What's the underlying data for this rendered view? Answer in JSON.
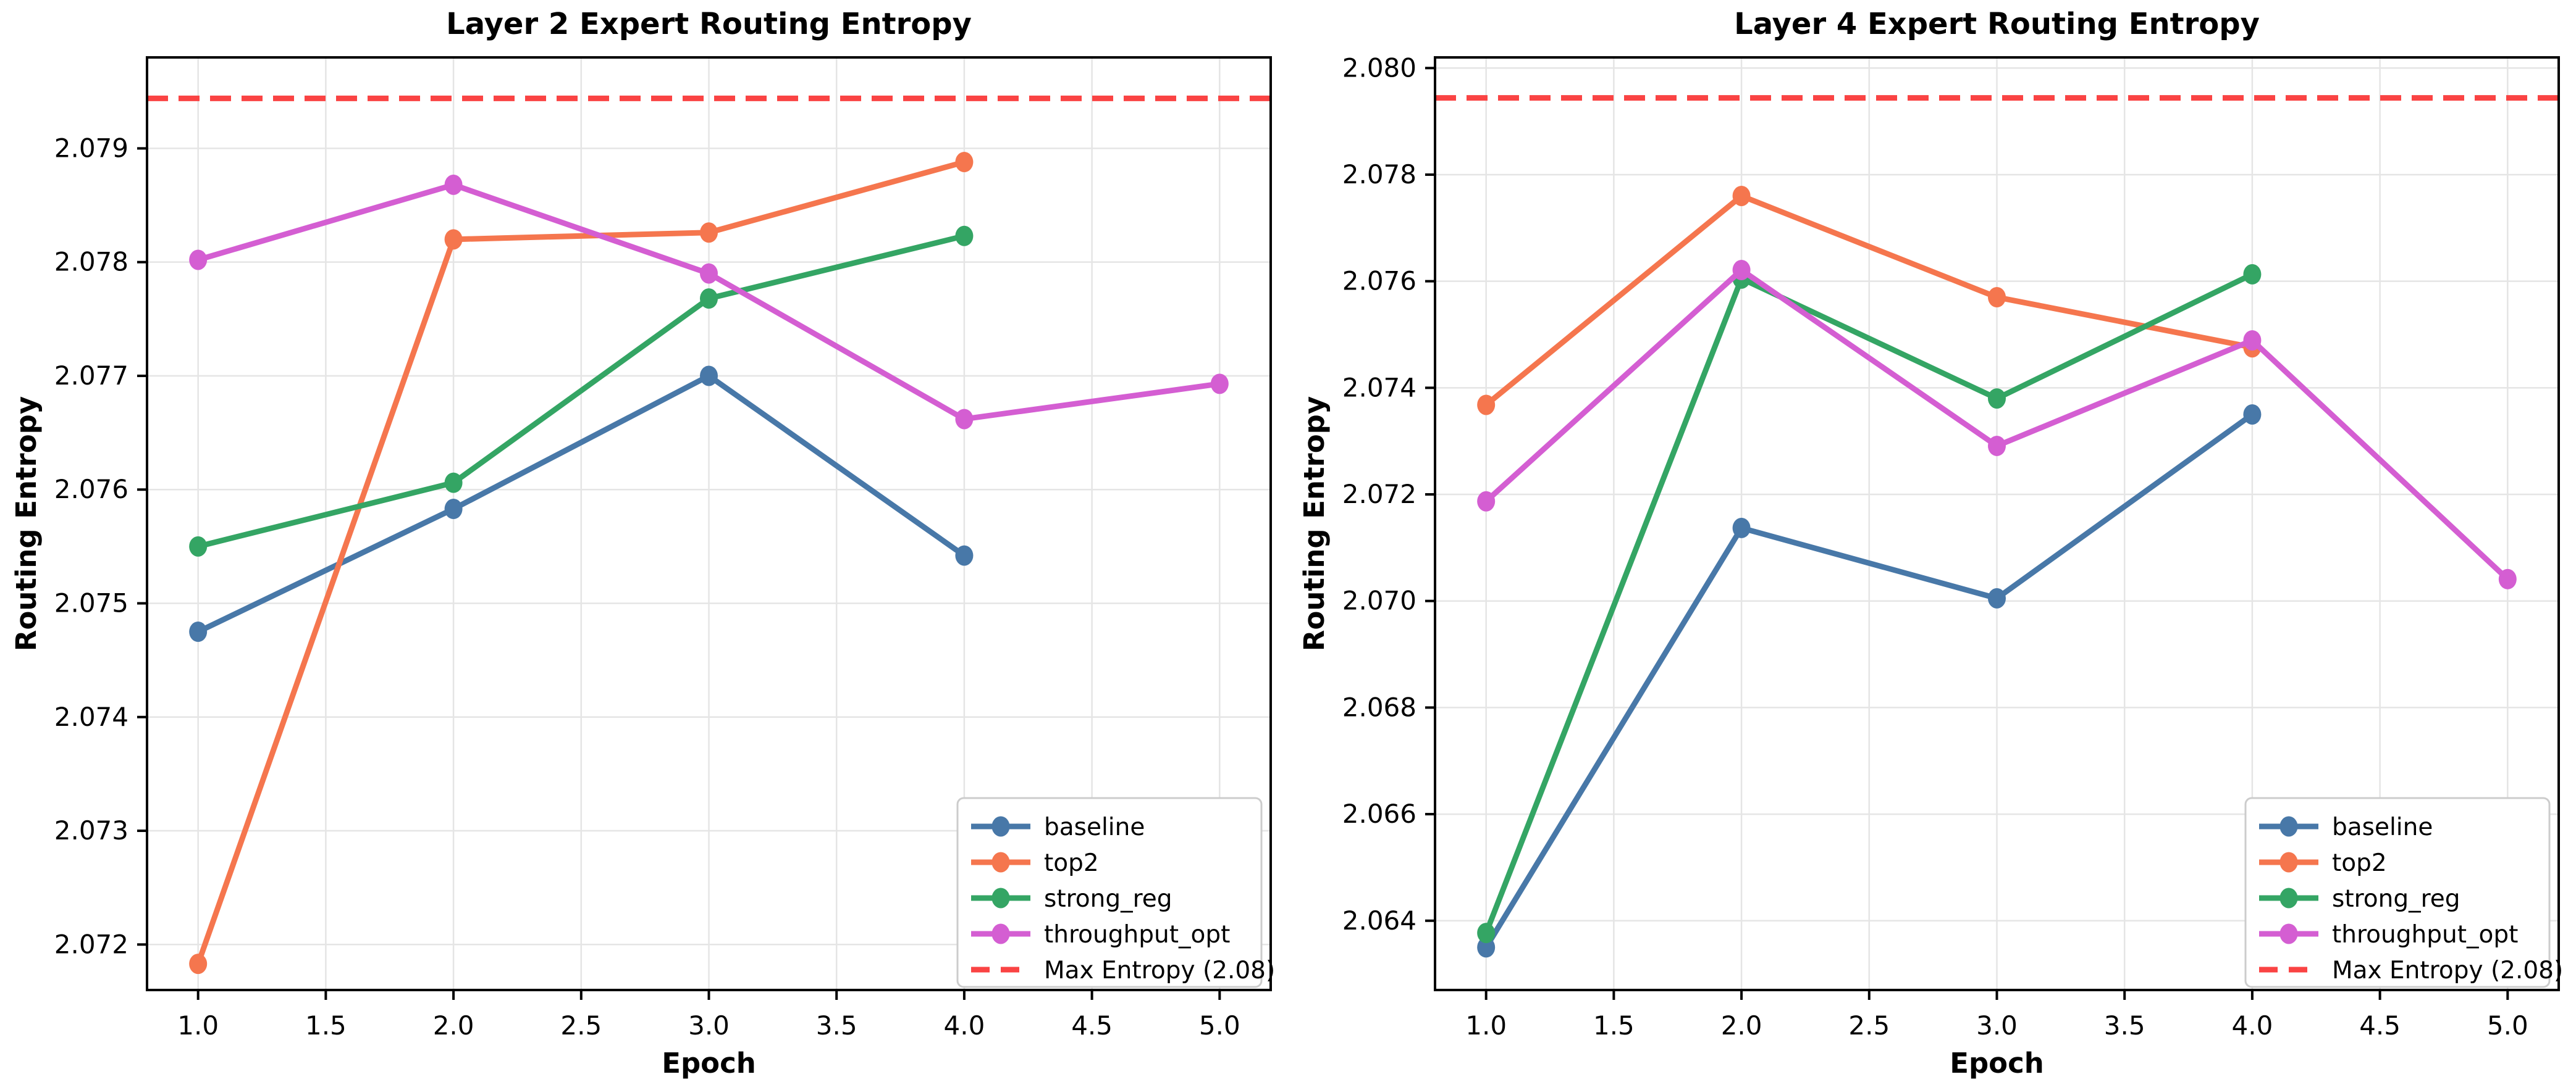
{
  "style": {
    "background": "#FFFFFF",
    "grid_color": "#E5E5E5",
    "spine_color": "#000000",
    "text_color": "#000000",
    "legend_border_color": "#CCCCCC",
    "legend_background": "#FFFFFF"
  },
  "chart_data": [
    {
      "type": "line",
      "title": "Layer 2 Expert Routing Entropy",
      "xlabel": "Epoch",
      "ylabel": "Routing Entropy",
      "xlim": [
        0.8,
        5.2
      ],
      "ylim": [
        2.0716,
        2.0798
      ],
      "xticks": [
        1.0,
        1.5,
        2.0,
        2.5,
        3.0,
        3.5,
        4.0,
        4.5,
        5.0
      ],
      "xtick_labels": [
        "1.0",
        "1.5",
        "2.0",
        "2.5",
        "3.0",
        "3.5",
        "4.0",
        "4.5",
        "5.0"
      ],
      "yticks": [
        2.072,
        2.073,
        2.074,
        2.075,
        2.076,
        2.077,
        2.078,
        2.079
      ],
      "ytick_labels": [
        "2.072",
        "2.073",
        "2.074",
        "2.075",
        "2.076",
        "2.077",
        "2.078",
        "2.079"
      ],
      "grid": true,
      "legend_position": "lower right",
      "series": [
        {
          "name": "baseline",
          "color": "#4878A8",
          "x": [
            1,
            2,
            3,
            4
          ],
          "values": [
            2.07475,
            2.07583,
            2.077,
            2.07542
          ]
        },
        {
          "name": "top2",
          "color": "#F5764E",
          "x": [
            1,
            2,
            3,
            4
          ],
          "values": [
            2.07183,
            2.0782,
            2.07826,
            2.07888
          ]
        },
        {
          "name": "strong_reg",
          "color": "#34A564",
          "x": [
            1,
            2,
            3,
            4
          ],
          "values": [
            2.0755,
            2.07606,
            2.07768,
            2.07823
          ]
        },
        {
          "name": "throughput_opt",
          "color": "#D45ED2",
          "x": [
            1,
            2,
            3,
            4,
            5
          ],
          "values": [
            2.07802,
            2.07868,
            2.0779,
            2.07662,
            2.07693
          ]
        }
      ],
      "reference_line": {
        "label": "Max Entropy (2.08)",
        "value": 2.07944,
        "color": "#FA4343",
        "style": "dashed"
      }
    },
    {
      "type": "line",
      "title": "Layer 4 Expert Routing Entropy",
      "xlabel": "Epoch",
      "ylabel": "Routing Entropy",
      "xlim": [
        0.8,
        5.2
      ],
      "ylim": [
        2.0627,
        2.0802
      ],
      "xticks": [
        1.0,
        1.5,
        2.0,
        2.5,
        3.0,
        3.5,
        4.0,
        4.5,
        5.0
      ],
      "xtick_labels": [
        "1.0",
        "1.5",
        "2.0",
        "2.5",
        "3.0",
        "3.5",
        "4.0",
        "4.5",
        "5.0"
      ],
      "yticks": [
        2.064,
        2.066,
        2.068,
        2.07,
        2.072,
        2.074,
        2.076,
        2.078,
        2.08
      ],
      "ytick_labels": [
        "2.064",
        "2.066",
        "2.068",
        "2.070",
        "2.072",
        "2.074",
        "2.076",
        "2.078",
        "2.080"
      ],
      "grid": true,
      "legend_position": "lower right",
      "series": [
        {
          "name": "baseline",
          "color": "#4878A8",
          "x": [
            1,
            2,
            3,
            4
          ],
          "values": [
            2.0635,
            2.07137,
            2.07005,
            2.0735
          ]
        },
        {
          "name": "top2",
          "color": "#F5764E",
          "x": [
            1,
            2,
            3,
            4
          ],
          "values": [
            2.07368,
            2.0776,
            2.0757,
            2.07476
          ]
        },
        {
          "name": "strong_reg",
          "color": "#34A564",
          "x": [
            1,
            2,
            3,
            4
          ],
          "values": [
            2.06377,
            2.07605,
            2.0738,
            2.07613
          ]
        },
        {
          "name": "throughput_opt",
          "color": "#D45ED2",
          "x": [
            1,
            2,
            3,
            4,
            5
          ],
          "values": [
            2.07187,
            2.07621,
            2.07291,
            2.07489,
            2.07041
          ]
        }
      ],
      "reference_line": {
        "label": "Max Entropy (2.08)",
        "value": 2.07944,
        "color": "#FA4343",
        "style": "dashed"
      }
    }
  ]
}
